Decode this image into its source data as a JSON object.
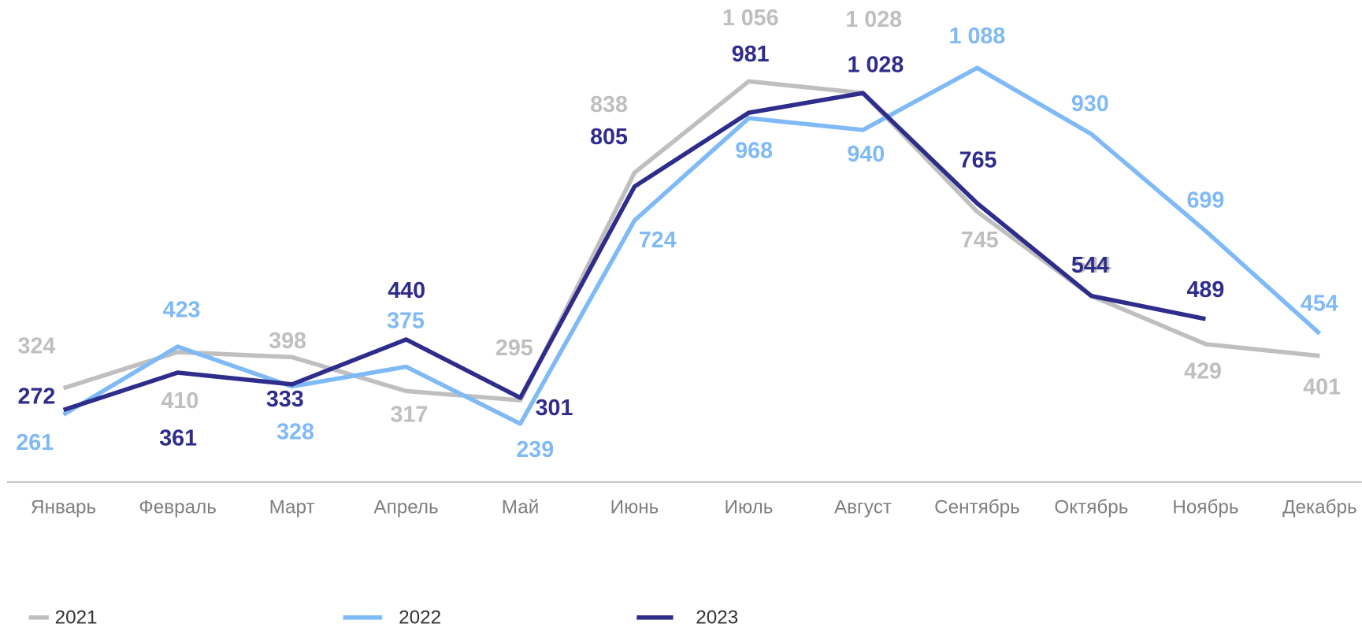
{
  "chart_data": {
    "type": "line",
    "categories": [
      "Январь",
      "Февраль",
      "Март",
      "Апрель",
      "Май",
      "Июнь",
      "Июль",
      "Август",
      "Сентябрь",
      "Октябрь",
      "Ноябрь",
      "Декабрь"
    ],
    "ylim": [
      100,
      1250
    ],
    "series": [
      {
        "name": "2021",
        "color": "#bfbfbf",
        "values": [
          324,
          410,
          398,
          317,
          295,
          838,
          1056,
          1028,
          745,
          544,
          429,
          401
        ],
        "value_labels": [
          "324",
          "410",
          "398",
          "317",
          "295",
          "838",
          "1 056",
          "1 028",
          "745",
          "544",
          "429",
          "401"
        ]
      },
      {
        "name": "2022",
        "color": "#7fbaf6",
        "values": [
          261,
          423,
          328,
          375,
          239,
          724,
          968,
          940,
          1088,
          930,
          699,
          454
        ],
        "value_labels": [
          "261",
          "423",
          "328",
          "375",
          "239",
          "724",
          "968",
          "940",
          "1 088",
          "930",
          "699",
          "454"
        ]
      },
      {
        "name": "2023",
        "color": "#2e2d8c",
        "values": [
          272,
          361,
          333,
          440,
          301,
          805,
          981,
          1028,
          765,
          544,
          489,
          null
        ],
        "value_labels": [
          "272",
          "361",
          "333",
          "440",
          "301",
          "805",
          "981",
          "1 028",
          "765",
          "544",
          "489",
          null
        ]
      }
    ]
  }
}
